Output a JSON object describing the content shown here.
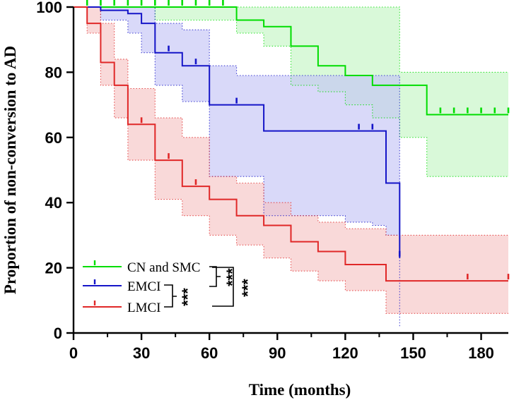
{
  "chart_data": {
    "type": "line",
    "subtype": "kaplan-meier",
    "title": "",
    "xlabel": "Time (months)",
    "ylabel": "Proportion of non-conversion to AD",
    "xlim": [
      0,
      192
    ],
    "ylim": [
      0,
      100
    ],
    "xticks": [
      0,
      30,
      60,
      90,
      120,
      150,
      180
    ],
    "yticks": [
      0,
      20,
      40,
      60,
      80,
      100
    ],
    "legend_position": "bottom-left",
    "series": [
      {
        "name": "CN and SMC",
        "color": "#00dd00",
        "fill": "#c2f5c2",
        "steps": [
          [
            0,
            100
          ],
          [
            72,
            96
          ],
          [
            84,
            94
          ],
          [
            96,
            88
          ],
          [
            108,
            82
          ],
          [
            120,
            79
          ],
          [
            132,
            76
          ],
          [
            156,
            67
          ],
          [
            192,
            67
          ]
        ],
        "ci_upper": [
          [
            0,
            100
          ],
          [
            72,
            100
          ],
          [
            96,
            100
          ],
          [
            132,
            100
          ],
          [
            144,
            80
          ],
          [
            192,
            80
          ]
        ],
        "ci_lower": [
          [
            0,
            100
          ],
          [
            36,
            96
          ],
          [
            72,
            92
          ],
          [
            84,
            88
          ],
          [
            96,
            76
          ],
          [
            108,
            74
          ],
          [
            120,
            70
          ],
          [
            132,
            66
          ],
          [
            144,
            60
          ],
          [
            156,
            48
          ],
          [
            192,
            48
          ]
        ],
        "censor_times": [
          6,
          12,
          18,
          24,
          30,
          36,
          42,
          48,
          54,
          60,
          66,
          162,
          168,
          174,
          180,
          186,
          192
        ]
      },
      {
        "name": "EMCI",
        "color": "#1515c8",
        "fill": "#c2c2f5",
        "steps": [
          [
            0,
            100
          ],
          [
            12,
            99
          ],
          [
            24,
            98
          ],
          [
            30,
            95
          ],
          [
            36,
            86
          ],
          [
            48,
            82
          ],
          [
            60,
            70
          ],
          [
            84,
            62
          ],
          [
            138,
            61
          ],
          [
            138,
            46
          ],
          [
            144,
            46
          ],
          [
            144,
            23
          ]
        ],
        "ci_upper": [
          [
            0,
            100
          ],
          [
            12,
            100
          ],
          [
            24,
            100
          ],
          [
            36,
            95
          ],
          [
            48,
            93
          ],
          [
            60,
            82
          ],
          [
            72,
            79
          ],
          [
            96,
            79
          ],
          [
            144,
            79
          ],
          [
            144,
            23
          ]
        ],
        "ci_lower": [
          [
            0,
            100
          ],
          [
            12,
            96
          ],
          [
            24,
            92
          ],
          [
            30,
            86
          ],
          [
            36,
            76
          ],
          [
            48,
            71
          ],
          [
            60,
            48
          ],
          [
            72,
            48
          ],
          [
            84,
            36
          ],
          [
            120,
            34
          ],
          [
            132,
            33
          ],
          [
            138,
            30
          ],
          [
            144,
            2
          ]
        ],
        "censor_times": [
          42,
          54,
          72,
          126,
          132,
          144
        ]
      },
      {
        "name": "LMCI",
        "color": "#e02828",
        "fill": "#f5c2c2",
        "steps": [
          [
            0,
            100
          ],
          [
            6,
            95
          ],
          [
            12,
            83
          ],
          [
            18,
            76
          ],
          [
            24,
            64
          ],
          [
            30,
            64
          ],
          [
            36,
            53
          ],
          [
            48,
            45
          ],
          [
            60,
            41
          ],
          [
            72,
            36
          ],
          [
            84,
            33
          ],
          [
            96,
            28
          ],
          [
            108,
            25
          ],
          [
            120,
            21
          ],
          [
            138,
            16
          ],
          [
            192,
            16
          ]
        ],
        "ci_upper": [
          [
            0,
            100
          ],
          [
            6,
            100
          ],
          [
            12,
            95
          ],
          [
            18,
            84
          ],
          [
            24,
            75
          ],
          [
            36,
            66
          ],
          [
            48,
            60
          ],
          [
            60,
            48
          ],
          [
            72,
            46
          ],
          [
            84,
            40
          ],
          [
            96,
            36
          ],
          [
            108,
            34
          ],
          [
            120,
            32
          ],
          [
            138,
            30
          ],
          [
            192,
            30
          ]
        ],
        "ci_lower": [
          [
            0,
            100
          ],
          [
            6,
            92
          ],
          [
            12,
            76
          ],
          [
            18,
            66
          ],
          [
            24,
            53
          ],
          [
            36,
            41
          ],
          [
            48,
            36
          ],
          [
            60,
            30
          ],
          [
            72,
            27
          ],
          [
            84,
            23
          ],
          [
            96,
            19
          ],
          [
            108,
            16
          ],
          [
            120,
            13
          ],
          [
            138,
            6
          ],
          [
            192,
            6
          ]
        ],
        "censor_times": [
          30,
          42,
          54,
          174,
          192
        ]
      }
    ],
    "significance": [
      {
        "pair": [
          "CN and SMC",
          "EMCI"
        ],
        "label": "***"
      },
      {
        "pair": [
          "EMCI",
          "LMCI"
        ],
        "label": "***"
      },
      {
        "pair": [
          "CN and SMC",
          "LMCI"
        ],
        "label": "***"
      }
    ]
  }
}
